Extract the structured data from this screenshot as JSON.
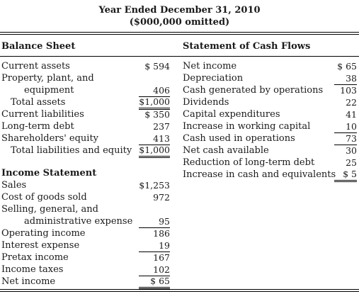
{
  "header": {
    "title": "Year Ended December 31, 2010",
    "subtitle": "($000,000 omitted)"
  },
  "balance_sheet": {
    "heading": "Balance Sheet",
    "rows": [
      {
        "label": "Current assets",
        "value": "$ 594"
      },
      {
        "label": "Property, plant, and",
        "value": ""
      },
      {
        "label": "equipment",
        "value": "406"
      },
      {
        "label": "Total assets",
        "value": "$1,000"
      },
      {
        "label": "Current liabilities",
        "value": "$ 350"
      },
      {
        "label": "Long-term debt",
        "value": "237"
      },
      {
        "label": "Shareholders' equity",
        "value": "413"
      },
      {
        "label": "Total liabilities and equity",
        "value": "$1,000"
      }
    ]
  },
  "income_statement": {
    "heading": "Income Statement",
    "rows": [
      {
        "label": "Sales",
        "value": "$1,253"
      },
      {
        "label": "Cost of goods sold",
        "value": "972"
      },
      {
        "label": "Selling, general, and",
        "value": ""
      },
      {
        "label": "administrative expense",
        "value": "95"
      },
      {
        "label": "Operating income",
        "value": "186"
      },
      {
        "label": "Interest expense",
        "value": "19"
      },
      {
        "label": "Pretax income",
        "value": "167"
      },
      {
        "label": "Income taxes",
        "value": "102"
      },
      {
        "label": "Net income",
        "value": "$ 65"
      }
    ]
  },
  "cash_flows": {
    "heading": "Statement of Cash Flows",
    "rows": [
      {
        "label": "Net income",
        "value": "$ 65"
      },
      {
        "label": "Depreciation",
        "value": "38"
      },
      {
        "label": "Cash generated by operations",
        "value": "103"
      },
      {
        "label": "Dividends",
        "value": "22"
      },
      {
        "label": "Capital expenditures",
        "value": "41"
      },
      {
        "label": "Increase in working capital",
        "value": "10"
      },
      {
        "label": "Cash used in operations",
        "value": "73"
      },
      {
        "label": "Net cash available",
        "value": "30"
      },
      {
        "label": "Reduction of long-term debt",
        "value": "25"
      },
      {
        "label": "Increase in cash and equivalents",
        "value": "$ 5"
      }
    ]
  }
}
